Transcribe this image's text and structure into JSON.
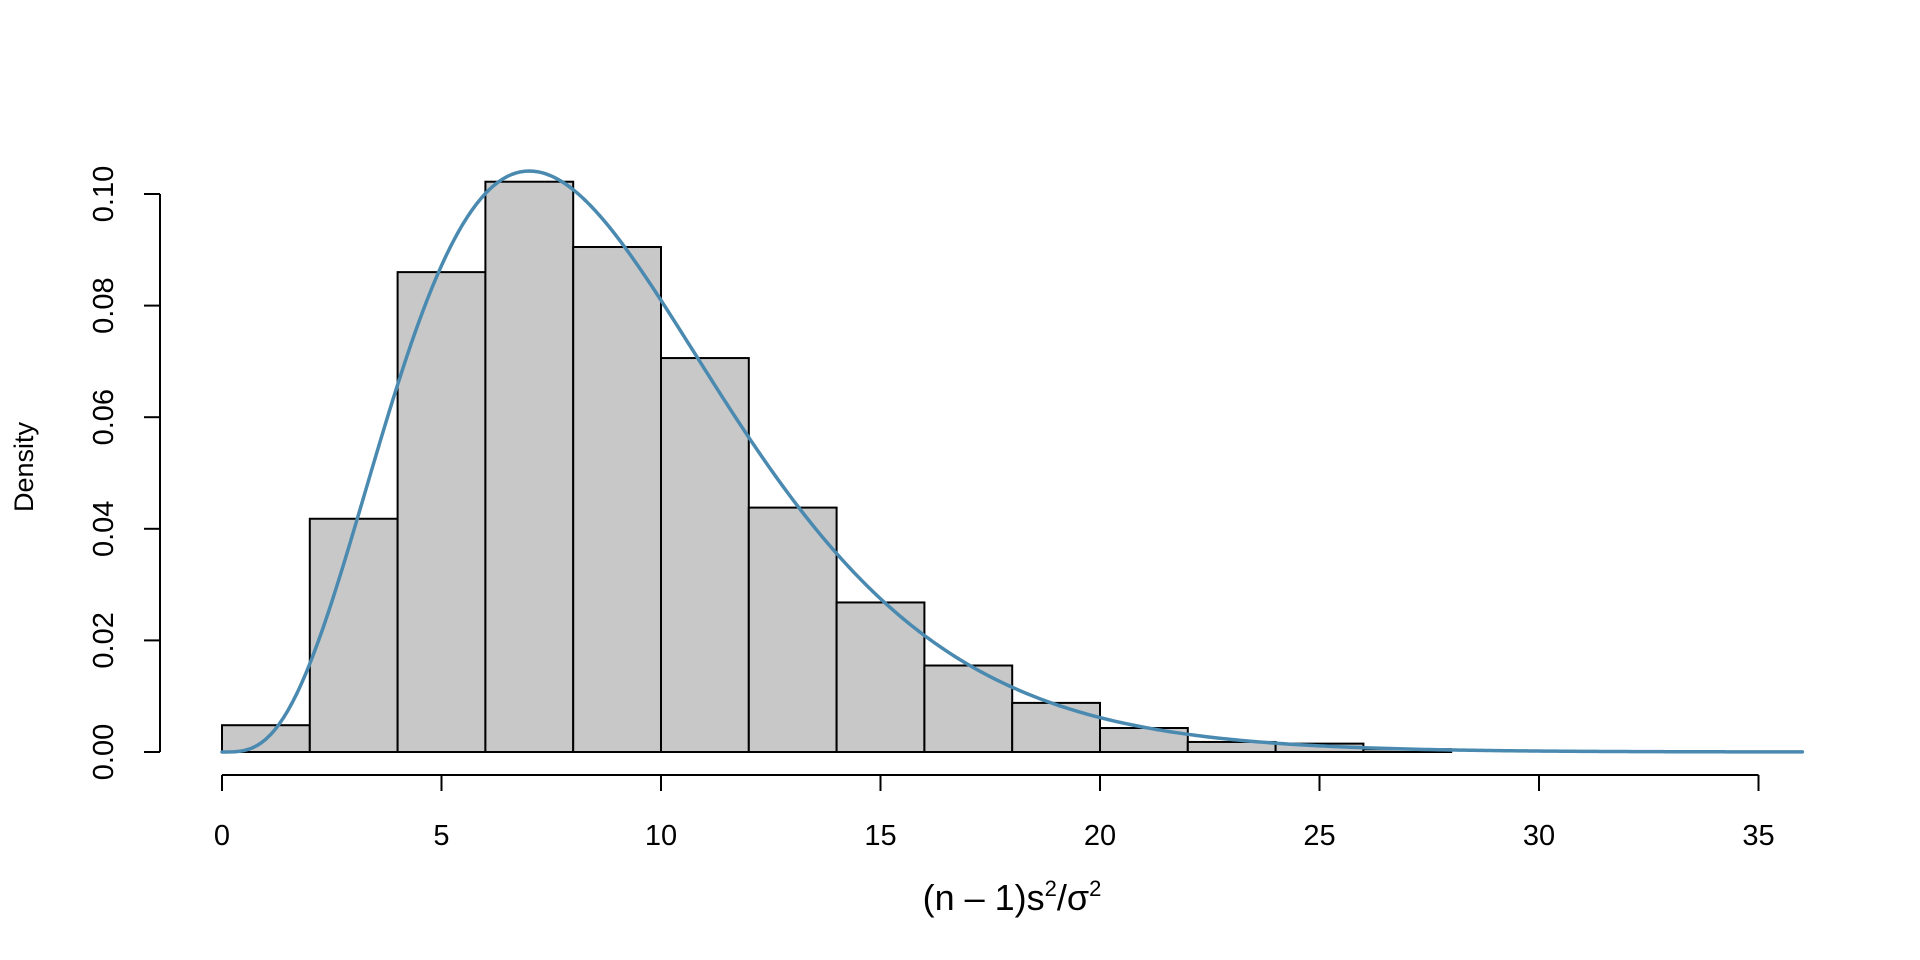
{
  "chart_data": {
    "type": "bar",
    "subtype": "histogram",
    "title": "",
    "xlabel": {
      "prefix": "(n – 1)s",
      "sup1": "2",
      "mid": "/σ",
      "sup2": "2"
    },
    "ylabel": "Density",
    "xlim": [
      0,
      36
    ],
    "ylim": [
      0,
      0.104
    ],
    "x_ticks": [
      "0",
      "5",
      "10",
      "15",
      "20",
      "25",
      "30",
      "35"
    ],
    "y_ticks": [
      "0.00",
      "0.02",
      "0.04",
      "0.06",
      "0.08",
      "0.10"
    ],
    "bins": [
      {
        "x0": 0,
        "x1": 2,
        "density": 0.0048
      },
      {
        "x0": 2,
        "x1": 4,
        "density": 0.0418
      },
      {
        "x0": 4,
        "x1": 6,
        "density": 0.086
      },
      {
        "x0": 6,
        "x1": 8,
        "density": 0.1022
      },
      {
        "x0": 8,
        "x1": 10,
        "density": 0.0905
      },
      {
        "x0": 10,
        "x1": 12,
        "density": 0.0706
      },
      {
        "x0": 12,
        "x1": 14,
        "density": 0.0438
      },
      {
        "x0": 14,
        "x1": 16,
        "density": 0.0268
      },
      {
        "x0": 16,
        "x1": 18,
        "density": 0.0155
      },
      {
        "x0": 18,
        "x1": 20,
        "density": 0.0088
      },
      {
        "x0": 20,
        "x1": 22,
        "density": 0.0043
      },
      {
        "x0": 22,
        "x1": 24,
        "density": 0.0018
      },
      {
        "x0": 24,
        "x1": 26,
        "density": 0.0015
      },
      {
        "x0": 26,
        "x1": 28,
        "density": 0.0005
      }
    ],
    "curve": {
      "type": "line",
      "distribution": "chi-square",
      "df": 9,
      "x_range": [
        0,
        36
      ],
      "color": "#4a8ab0"
    },
    "colors": {
      "bar_fill": "#c8c8c8",
      "bar_stroke": "#000000",
      "axis": "#000000"
    },
    "grid": false,
    "legend": "none"
  }
}
